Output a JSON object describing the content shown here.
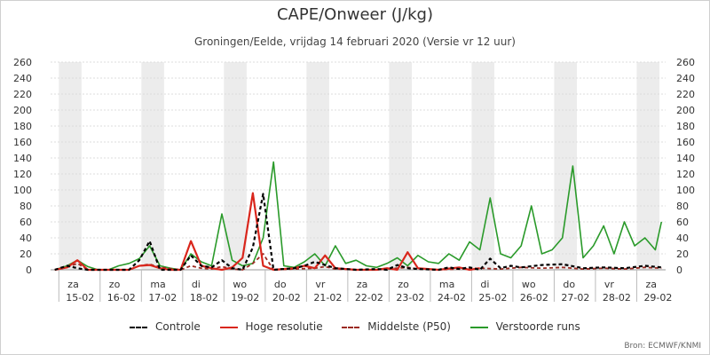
{
  "title": "CAPE/Onweer (J/kg)",
  "subtitle": "Groningen/Eelde, vrijdag 14 februari 2020 (Versie vr 12 uur)",
  "source": "Bron: ECMWF/KNMI",
  "colors": {
    "controle": "#000000",
    "hoge_resolutie": "#d9261c",
    "middelste": "#9b2a22",
    "verstoorde": "#2a9a2a",
    "weekend_band": "#ececec",
    "grid": "#dcdcdc"
  },
  "legend": [
    {
      "label": "Controle",
      "key": "controle",
      "dash": "4,3",
      "color": "#000000"
    },
    {
      "label": "Hoge resolutie",
      "key": "hoge_resolutie",
      "dash": "",
      "color": "#d9261c"
    },
    {
      "label": "Middelste (P50)",
      "key": "middelste",
      "dash": "4,3",
      "color": "#9b2a22"
    },
    {
      "label": "Verstoorde runs",
      "key": "verstoorde",
      "dash": "",
      "color": "#2a9a2a"
    }
  ],
  "chart_data": {
    "type": "line",
    "title": "CAPE/Onweer (J/kg)",
    "subtitle": "Groningen/Eelde, vrijdag 14 februari 2020 (Versie vr 12 uur)",
    "xlabel": "",
    "ylabel": "",
    "ylim": [
      0,
      260
    ],
    "yticks": [
      0,
      20,
      40,
      60,
      80,
      100,
      120,
      140,
      160,
      180,
      200,
      220,
      240,
      260
    ],
    "xlim": [
      -0.4,
      14.5
    ],
    "grid": true,
    "legend_position": "bottom",
    "days": [
      {
        "weekday": "za",
        "date": "15-02"
      },
      {
        "weekday": "zo",
        "date": "16-02"
      },
      {
        "weekday": "ma",
        "date": "17-02"
      },
      {
        "weekday": "di",
        "date": "18-02"
      },
      {
        "weekday": "wo",
        "date": "19-02"
      },
      {
        "weekday": "do",
        "date": "20-02"
      },
      {
        "weekday": "vr",
        "date": "21-02"
      },
      {
        "weekday": "za",
        "date": "22-02"
      },
      {
        "weekday": "zo",
        "date": "23-02"
      },
      {
        "weekday": "ma",
        "date": "24-02"
      },
      {
        "weekday": "di",
        "date": "25-02"
      },
      {
        "weekday": "wo",
        "date": "26-02"
      },
      {
        "weekday": "do",
        "date": "27-02"
      },
      {
        "weekday": "vr",
        "date": "28-02"
      },
      {
        "weekday": "za",
        "date": "29-02"
      }
    ],
    "shaded_days": [
      0,
      2,
      4,
      6,
      8,
      10,
      12,
      14
    ],
    "series": [
      {
        "name": "Controle",
        "key": "controle",
        "x": [
          -0.3,
          0.0,
          0.25,
          0.5,
          1.0,
          1.5,
          1.75,
          2.0,
          2.25,
          2.75,
          3.0,
          3.25,
          3.5,
          3.75,
          4.0,
          4.25,
          4.5,
          4.75,
          5.0,
          5.5,
          5.75,
          6.0,
          6.25,
          6.5,
          7.0,
          7.5,
          7.75,
          8.0,
          8.25,
          8.5,
          9.0,
          9.25,
          9.5,
          9.75,
          10.0,
          10.25,
          10.5,
          10.75,
          11.0,
          11.5,
          12.0,
          12.5,
          13.0,
          13.5,
          14.0,
          14.4
        ],
        "values": [
          0,
          5,
          2,
          0,
          0,
          0,
          12,
          36,
          0,
          0,
          18,
          5,
          3,
          12,
          2,
          0,
          28,
          95,
          0,
          2,
          5,
          10,
          6,
          2,
          0,
          1,
          0,
          6,
          2,
          1,
          0,
          3,
          1,
          3,
          0,
          14,
          2,
          5,
          3,
          6,
          7,
          2,
          3,
          2,
          5,
          3
        ]
      },
      {
        "name": "Hoge resolutie",
        "key": "hoge_resolutie",
        "x": [
          -0.3,
          0.0,
          0.25,
          0.5,
          1.0,
          1.5,
          1.75,
          2.0,
          2.25,
          2.5,
          2.75,
          3.0,
          3.25,
          3.5,
          3.75,
          4.0,
          4.25,
          4.5,
          4.75,
          5.0,
          5.5,
          5.75,
          6.0,
          6.25,
          6.5,
          7.0,
          7.5,
          7.75,
          8.0,
          8.25,
          8.5,
          9.0,
          9.5,
          9.75,
          10.0
        ],
        "values": [
          0,
          3,
          12,
          0,
          0,
          0,
          5,
          6,
          2,
          0,
          0,
          36,
          5,
          2,
          0,
          3,
          15,
          96,
          5,
          0,
          2,
          5,
          2,
          18,
          2,
          0,
          0,
          2,
          0,
          22,
          2,
          0,
          3,
          0,
          2
        ]
      },
      {
        "name": "Middelste (P50)",
        "key": "middelste",
        "x": [
          -0.3,
          0.0,
          0.25,
          0.5,
          1.0,
          1.5,
          1.75,
          2.0,
          2.25,
          2.75,
          3.0,
          3.25,
          3.5,
          3.75,
          4.0,
          4.25,
          4.5,
          4.75,
          5.0,
          5.5,
          6.0,
          6.25,
          6.5,
          7.0,
          7.5,
          8.0,
          8.25,
          8.5,
          9.0,
          9.5,
          10.0,
          10.5,
          11.0,
          11.5,
          12.0,
          12.5,
          13.0,
          13.5,
          14.0,
          14.4
        ],
        "values": [
          0,
          3,
          8,
          0,
          0,
          0,
          5,
          7,
          3,
          0,
          5,
          2,
          1,
          4,
          1,
          0,
          8,
          20,
          0,
          1,
          2,
          4,
          1,
          0,
          0,
          2,
          3,
          1,
          0,
          1,
          2,
          1,
          3,
          2,
          3,
          1,
          2,
          1,
          3,
          2
        ]
      },
      {
        "name": "Verstoorde runs",
        "key": "verstoorde",
        "x": [
          -0.3,
          0.0,
          0.25,
          0.5,
          0.75,
          1.0,
          1.25,
          1.5,
          1.75,
          2.0,
          2.25,
          2.5,
          2.75,
          3.0,
          3.25,
          3.5,
          3.75,
          4.0,
          4.25,
          4.5,
          4.75,
          5.0,
          5.25,
          5.5,
          5.75,
          6.0,
          6.25,
          6.5,
          6.75,
          7.0,
          7.25,
          7.5,
          7.75,
          8.0,
          8.25,
          8.5,
          8.75,
          9.0,
          9.25,
          9.5,
          9.75,
          10.0,
          10.25,
          10.5,
          10.75,
          11.0,
          11.25,
          11.5,
          11.75,
          12.0,
          12.25,
          12.5,
          12.75,
          13.0,
          13.25,
          13.5,
          13.75,
          14.0,
          14.25,
          14.4
        ],
        "values": [
          0,
          5,
          12,
          4,
          0,
          0,
          5,
          8,
          14,
          30,
          5,
          2,
          0,
          20,
          10,
          5,
          70,
          12,
          5,
          8,
          40,
          135,
          5,
          3,
          10,
          20,
          5,
          30,
          8,
          12,
          5,
          3,
          8,
          15,
          5,
          18,
          10,
          8,
          20,
          12,
          35,
          25,
          90,
          20,
          15,
          30,
          80,
          20,
          25,
          40,
          130,
          15,
          30,
          55,
          20,
          60,
          30,
          40,
          25,
          60
        ]
      }
    ]
  }
}
